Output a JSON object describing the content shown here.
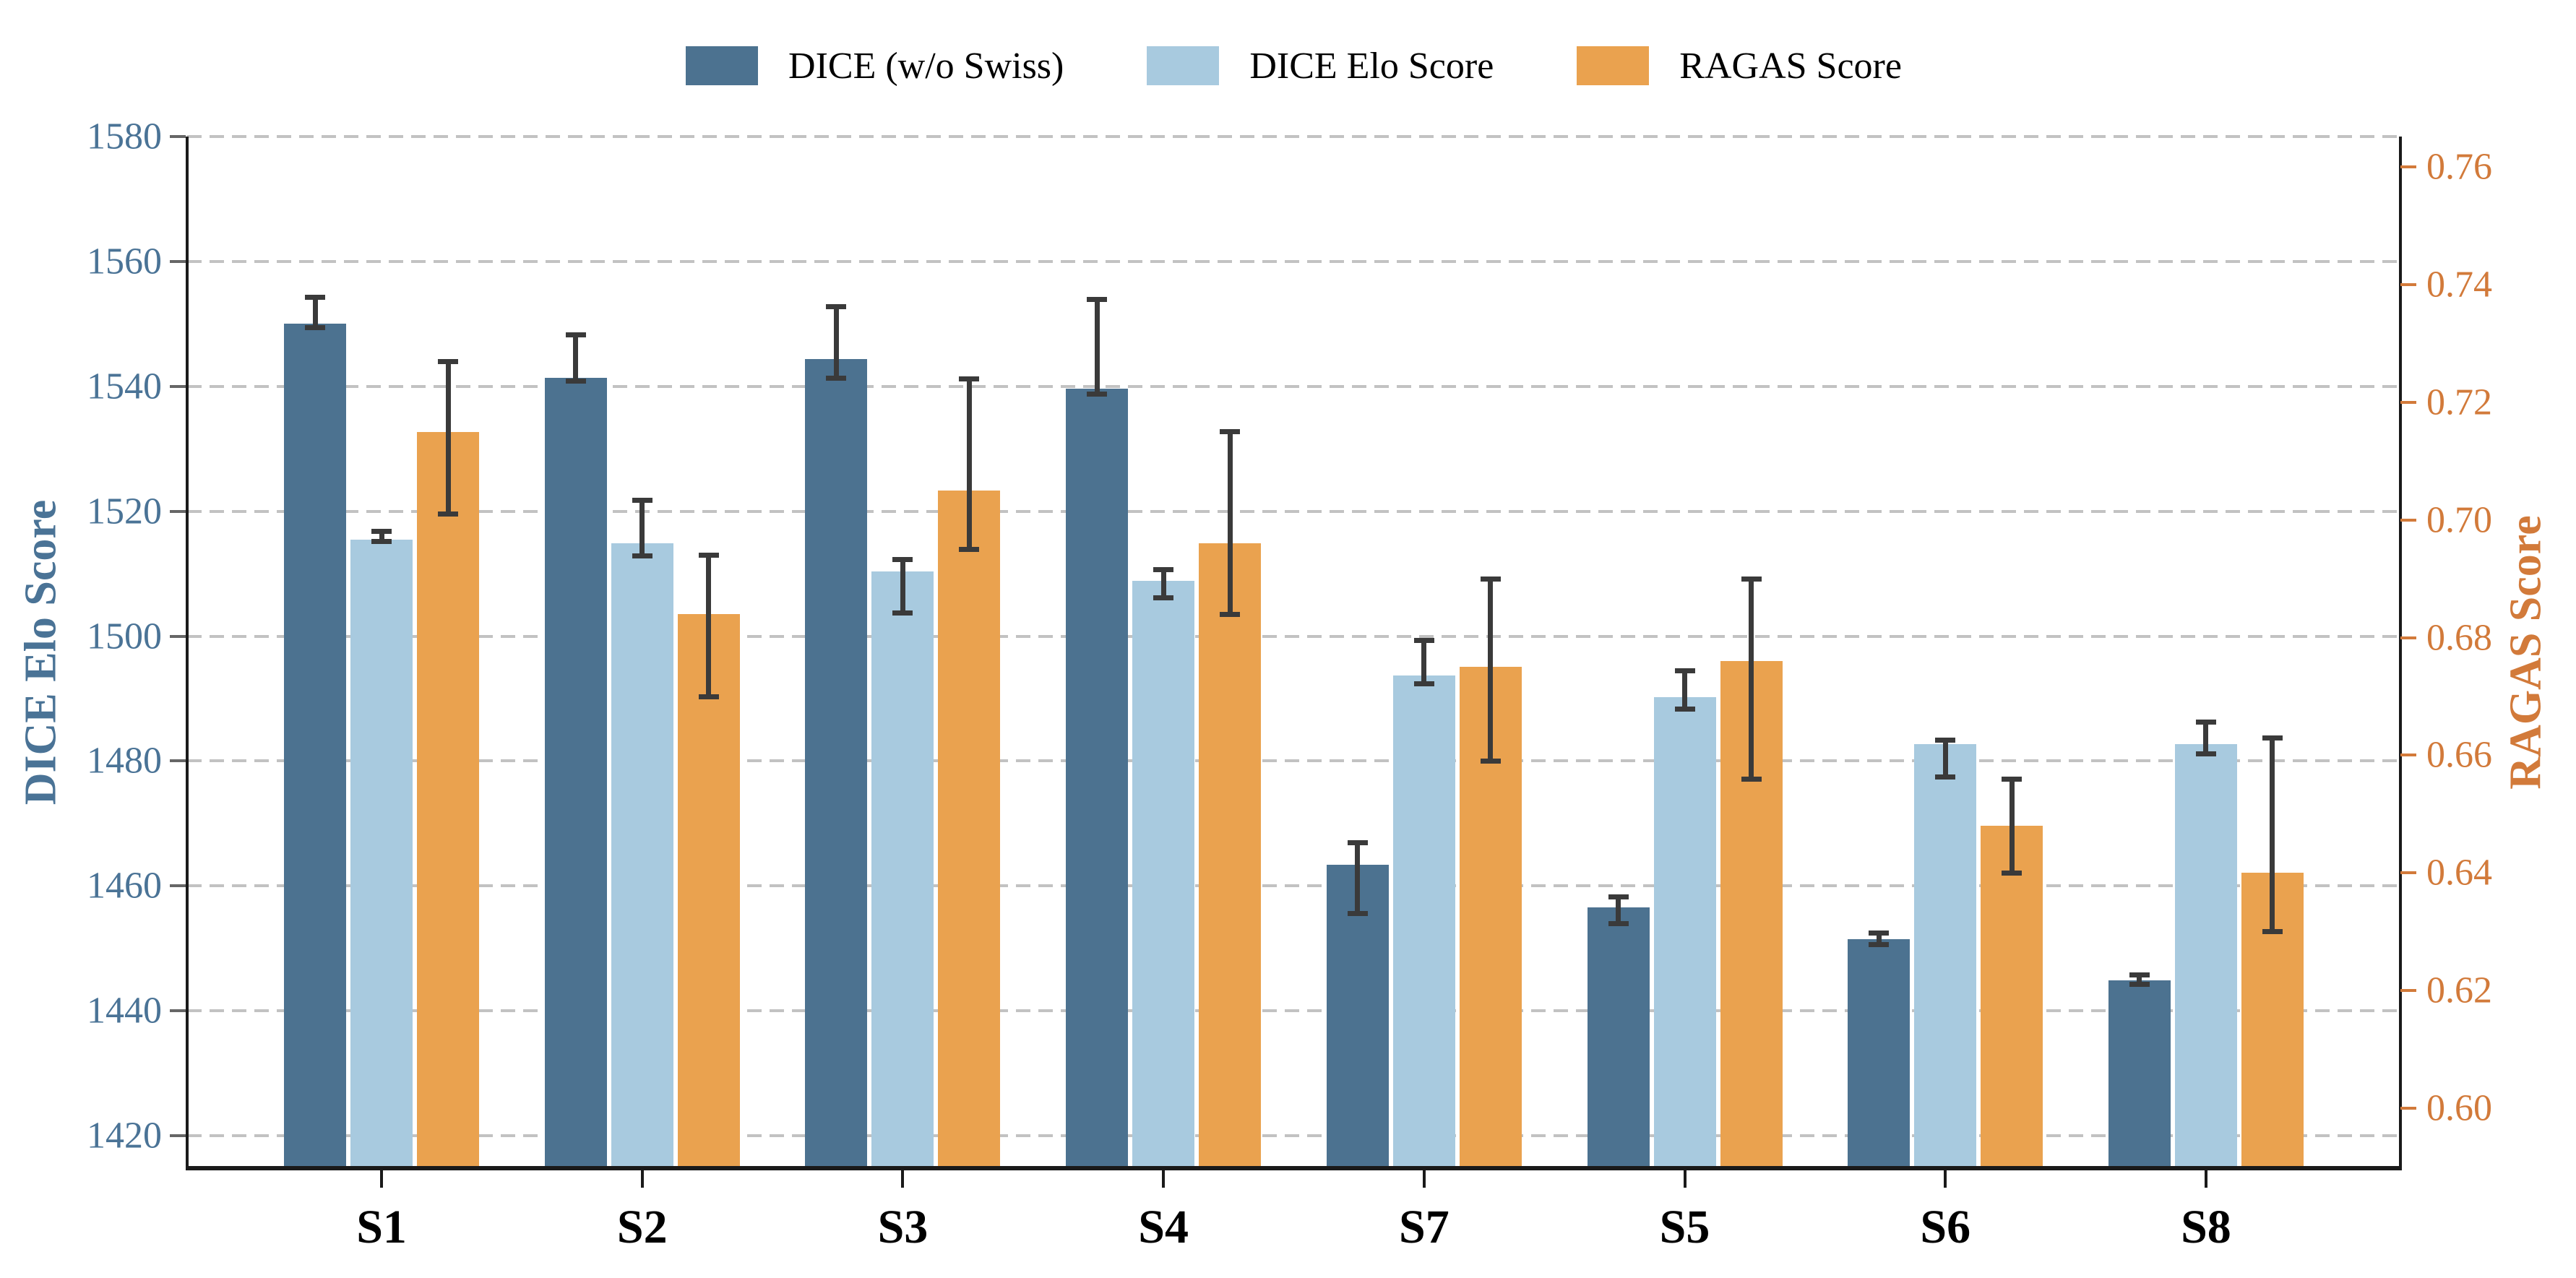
{
  "chart_data": {
    "type": "bar",
    "title": "",
    "categories": [
      "S1",
      "S2",
      "S3",
      "S4",
      "S7",
      "S5",
      "S6",
      "S8"
    ],
    "series": [
      {
        "name": "DICE (w/o Swiss)",
        "axis": "left",
        "color": "#4C7290",
        "values": [
          1550.0,
          1541.4,
          1544.4,
          1539.6,
          1463.4,
          1456.6,
          1451.5,
          1444.9
        ],
        "ci_low": [
          1549.4,
          1540.8,
          1541.3,
          1538.8,
          1455.6,
          1454.0,
          1450.6,
          1444.2
        ],
        "ci_high": [
          1554.3,
          1548.2,
          1552.8,
          1553.9,
          1466.9,
          1458.2,
          1452.4,
          1445.8
        ]
      },
      {
        "name": "DICE Elo Score",
        "axis": "left",
        "color": "#A8CADF",
        "values": [
          1515.5,
          1514.9,
          1510.4,
          1508.9,
          1493.7,
          1490.2,
          1482.7,
          1482.7
        ],
        "ci_low": [
          1515.2,
          1512.8,
          1503.7,
          1506.1,
          1492.4,
          1488.3,
          1477.5,
          1481.2
        ],
        "ci_high": [
          1516.8,
          1521.7,
          1512.3,
          1510.7,
          1499.3,
          1494.4,
          1483.4,
          1486.2
        ]
      },
      {
        "name": "RAGAS Score",
        "axis": "right",
        "color": "#EAA24F",
        "values": [
          0.715,
          0.684,
          0.705,
          0.696,
          0.675,
          0.676,
          0.648,
          0.64
        ],
        "ci_low": [
          0.701,
          0.67,
          0.695,
          0.684,
          0.659,
          0.656,
          0.64,
          0.63
        ],
        "ci_high": [
          0.727,
          0.694,
          0.724,
          0.715,
          0.69,
          0.69,
          0.656,
          0.663
        ]
      }
    ],
    "left_axis": {
      "label": "DICE Elo Score",
      "color": "#4A7396",
      "min": 1414.8,
      "max": 1580,
      "ticks": [
        1420,
        1440,
        1460,
        1480,
        1500,
        1520,
        1540,
        1560,
        1580
      ]
    },
    "right_axis": {
      "label": "RAGAS Score",
      "color": "#D27A3A",
      "min": 0.5898,
      "max": 0.7652,
      "ticks": [
        0.6,
        0.62,
        0.64,
        0.66,
        0.68,
        0.7,
        0.72,
        0.74,
        0.76
      ]
    },
    "legend_position": "top",
    "grid": true,
    "grid_color": "#C2C2C2",
    "errorbar_color": "#3a3a3a"
  }
}
